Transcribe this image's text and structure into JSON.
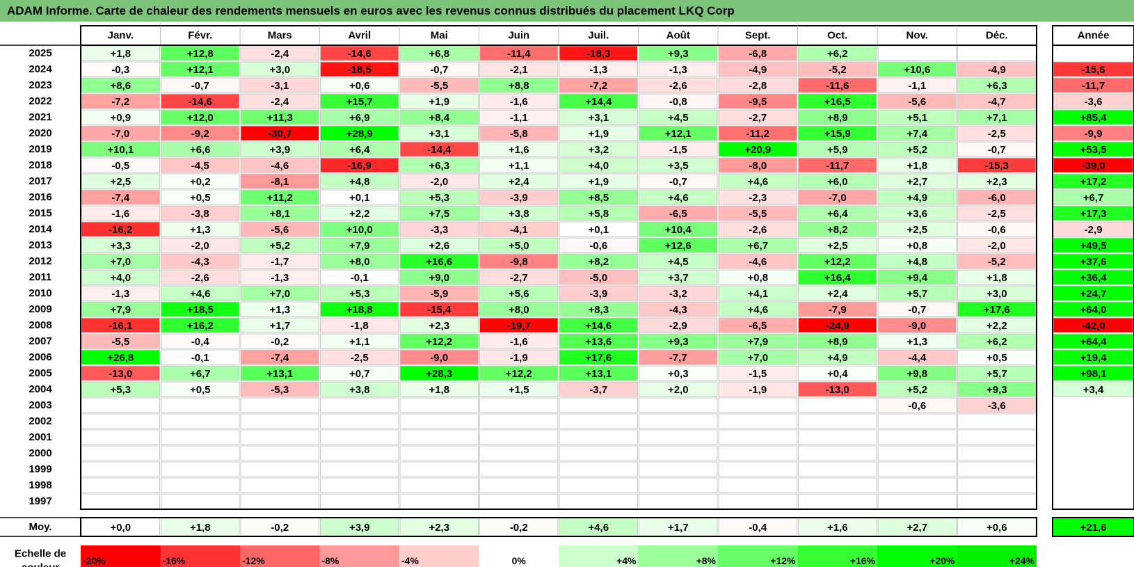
{
  "title": "ADAM Informe. Carte de chaleur des rendements mensuels en euros avec les revenus connus distribués du placement LKQ Corp",
  "chart_data": {
    "type": "heatmap",
    "columns": [
      "Janv.",
      "Févr.",
      "Mars",
      "Avril",
      "Mai",
      "Juin",
      "Juil.",
      "Août",
      "Sept.",
      "Oct.",
      "Nov.",
      "Déc."
    ],
    "year_column_label": "Année",
    "rows": [
      {
        "year": "2025",
        "values": [
          1.8,
          12.8,
          -2.4,
          -14.6,
          6.8,
          -11.4,
          -18.3,
          9.3,
          -6.8,
          6.2,
          null,
          null
        ],
        "annual": null
      },
      {
        "year": "2024",
        "values": [
          -0.3,
          12.1,
          3.0,
          -18.5,
          -0.7,
          -2.1,
          -1.3,
          -1.3,
          -4.9,
          -5.2,
          10.6,
          -4.9
        ],
        "annual": -15.6
      },
      {
        "year": "2023",
        "values": [
          8.6,
          -0.7,
          -3.1,
          0.6,
          -5.5,
          8.8,
          -7.2,
          -2.6,
          -2.8,
          -11.6,
          -1.1,
          6.3
        ],
        "annual": -11.7
      },
      {
        "year": "2022",
        "values": [
          -7.2,
          -14.6,
          -2.4,
          15.7,
          1.9,
          -1.6,
          14.4,
          -0.8,
          -9.5,
          16.5,
          -5.6,
          -4.7
        ],
        "annual": -3.6
      },
      {
        "year": "2021",
        "values": [
          0.9,
          12.0,
          11.3,
          6.9,
          8.4,
          -1.1,
          3.1,
          4.5,
          -2.7,
          8.9,
          5.1,
          7.1
        ],
        "annual": 85.4
      },
      {
        "year": "2020",
        "values": [
          -7.0,
          -9.2,
          -30.7,
          28.9,
          3.1,
          -5.8,
          1.9,
          12.1,
          -11.2,
          15.9,
          7.4,
          -2.5
        ],
        "annual": -9.9
      },
      {
        "year": "2019",
        "values": [
          10.1,
          6.6,
          3.9,
          6.4,
          -14.4,
          1.6,
          3.2,
          -1.5,
          20.9,
          5.9,
          5.2,
          -0.7
        ],
        "annual": 53.5
      },
      {
        "year": "2018",
        "values": [
          -0.5,
          -4.5,
          -4.6,
          -16.9,
          6.3,
          1.1,
          4.0,
          3.5,
          -8.0,
          -11.7,
          1.8,
          -15.3
        ],
        "annual": -39.0
      },
      {
        "year": "2017",
        "values": [
          2.5,
          0.2,
          -8.1,
          4.8,
          -2.0,
          2.4,
          1.9,
          -0.7,
          4.6,
          6.0,
          2.7,
          2.3
        ],
        "annual": 17.2
      },
      {
        "year": "2016",
        "values": [
          -7.4,
          0.5,
          11.2,
          0.1,
          5.3,
          -3.9,
          8.5,
          4.6,
          -2.3,
          -7.0,
          4.9,
          -6.0
        ],
        "annual": 6.7
      },
      {
        "year": "2015",
        "values": [
          -1.6,
          -3.8,
          8.1,
          2.2,
          7.5,
          3.8,
          5.8,
          -6.5,
          -5.5,
          6.4,
          3.6,
          -2.5
        ],
        "annual": 17.3
      },
      {
        "year": "2014",
        "values": [
          -16.2,
          1.3,
          -5.6,
          10.0,
          -3.3,
          -4.1,
          0.1,
          10.4,
          -2.6,
          8.2,
          2.5,
          -0.6
        ],
        "annual": -2.9
      },
      {
        "year": "2013",
        "values": [
          3.3,
          -2.0,
          5.2,
          7.9,
          2.6,
          5.0,
          -0.6,
          12.6,
          6.7,
          2.5,
          0.8,
          -2.0
        ],
        "annual": 49.5
      },
      {
        "year": "2012",
        "values": [
          7.0,
          -4.3,
          -1.7,
          8.0,
          16.6,
          -9.8,
          8.2,
          4.5,
          -4.6,
          12.2,
          4.8,
          -5.2
        ],
        "annual": 37.6
      },
      {
        "year": "2011",
        "values": [
          4.0,
          -2.6,
          -1.3,
          -0.1,
          9.0,
          -2.7,
          -5.0,
          3.7,
          0.8,
          16.4,
          9.4,
          1.8
        ],
        "annual": 36.4
      },
      {
        "year": "2010",
        "values": [
          -1.3,
          4.6,
          7.0,
          5.3,
          -5.9,
          5.6,
          -3.9,
          -3.2,
          4.1,
          2.4,
          5.7,
          3.0
        ],
        "annual": 24.7
      },
      {
        "year": "2009",
        "values": [
          7.9,
          18.5,
          1.3,
          18.8,
          -15.4,
          8.0,
          8.3,
          -4.3,
          4.6,
          -7.9,
          -0.7,
          17.6
        ],
        "annual": 64.0
      },
      {
        "year": "2008",
        "values": [
          -16.1,
          16.2,
          1.7,
          -1.8,
          2.3,
          -19.7,
          14.6,
          -2.9,
          -6.5,
          -24.9,
          -9.0,
          2.2
        ],
        "annual": -42.0
      },
      {
        "year": "2007",
        "values": [
          -5.5,
          -0.4,
          -0.2,
          1.1,
          12.2,
          -1.6,
          13.6,
          9.3,
          7.9,
          8.9,
          1.3,
          6.2
        ],
        "annual": 64.4
      },
      {
        "year": "2006",
        "values": [
          26.8,
          -0.1,
          -7.4,
          -2.5,
          -9.0,
          -1.9,
          17.6,
          -7.7,
          7.0,
          4.9,
          -4.4,
          0.5
        ],
        "annual": 19.4
      },
      {
        "year": "2005",
        "values": [
          -13.0,
          6.7,
          13.1,
          0.7,
          28.3,
          12.2,
          13.1,
          0.3,
          -1.5,
          0.4,
          9.8,
          5.7
        ],
        "annual": 98.1
      },
      {
        "year": "2004",
        "values": [
          5.3,
          0.5,
          -5.3,
          3.8,
          1.8,
          1.5,
          -3.7,
          2.0,
          -1.9,
          -13.0,
          5.2,
          9.3
        ],
        "annual": 3.4
      },
      {
        "year": "2003",
        "values": [
          null,
          null,
          null,
          null,
          null,
          null,
          null,
          null,
          null,
          null,
          -0.6,
          -3.6
        ],
        "annual": null
      },
      {
        "year": "2002",
        "values": [
          null,
          null,
          null,
          null,
          null,
          null,
          null,
          null,
          null,
          null,
          null,
          null
        ],
        "annual": null
      },
      {
        "year": "2001",
        "values": [
          null,
          null,
          null,
          null,
          null,
          null,
          null,
          null,
          null,
          null,
          null,
          null
        ],
        "annual": null
      },
      {
        "year": "2000",
        "values": [
          null,
          null,
          null,
          null,
          null,
          null,
          null,
          null,
          null,
          null,
          null,
          null
        ],
        "annual": null
      },
      {
        "year": "1999",
        "values": [
          null,
          null,
          null,
          null,
          null,
          null,
          null,
          null,
          null,
          null,
          null,
          null
        ],
        "annual": null
      },
      {
        "year": "1998",
        "values": [
          null,
          null,
          null,
          null,
          null,
          null,
          null,
          null,
          null,
          null,
          null,
          null
        ],
        "annual": null
      },
      {
        "year": "1997",
        "values": [
          null,
          null,
          null,
          null,
          null,
          null,
          null,
          null,
          null,
          null,
          null,
          null
        ],
        "annual": null
      }
    ],
    "average": {
      "label": "Moy.",
      "values": [
        0.0,
        1.8,
        -0.2,
        3.9,
        2.3,
        -0.2,
        4.6,
        1.7,
        -0.4,
        1.6,
        2.7,
        0.6
      ],
      "annual": 21.6
    },
    "color_scale": {
      "label_line1": "Echelle de",
      "label_line2": "couleur",
      "stops": [
        {
          "label": "-20%",
          "value": -20,
          "color": "#ff0000"
        },
        {
          "label": "-16%",
          "value": -16,
          "color": "#ff3333"
        },
        {
          "label": "-12%",
          "value": -12,
          "color": "#ff6666"
        },
        {
          "label": "-8%",
          "value": -8,
          "color": "#ff9999"
        },
        {
          "label": "-4%",
          "value": -4,
          "color": "#ffcccc"
        },
        {
          "label": "0%",
          "value": 0,
          "color": "#ffffff"
        },
        {
          "label": "+4%",
          "value": 4,
          "color": "#ccffcc"
        },
        {
          "label": "+8%",
          "value": 8,
          "color": "#99ff99"
        },
        {
          "label": "+12%",
          "value": 12,
          "color": "#66ff66"
        },
        {
          "label": "+16%",
          "value": 16,
          "color": "#33ff33"
        },
        {
          "label": "+20%",
          "value": 20,
          "color": "#00ff00"
        },
        {
          "label": "+24%",
          "value": 24,
          "color": "#00ee00"
        }
      ]
    },
    "colors": {
      "title_bar": "#7cc47a",
      "negative": "#ff0000",
      "positive": "#00ff00",
      "neutral": "#ffffff",
      "grid": "#c0c0c0",
      "frame": "#000000"
    }
  }
}
